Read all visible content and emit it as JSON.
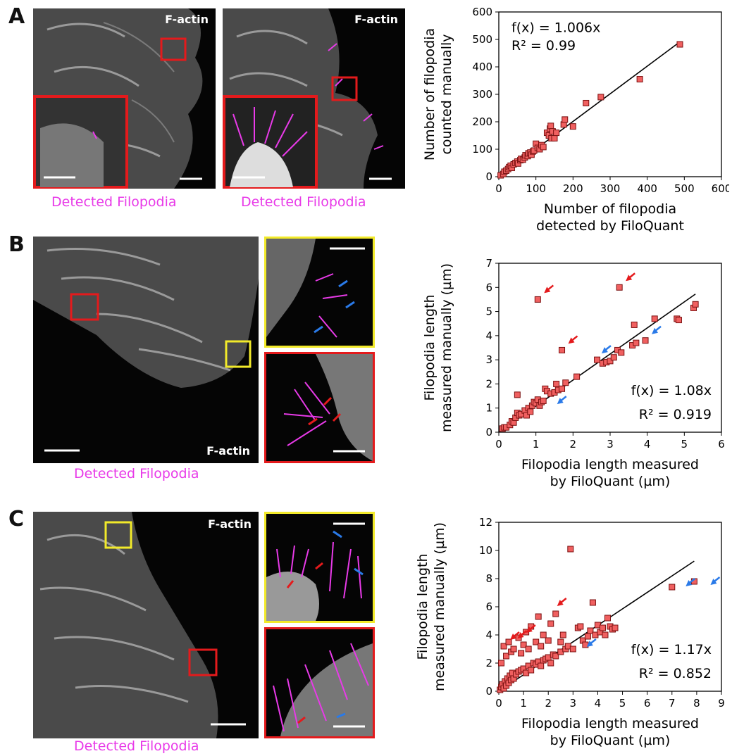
{
  "panels": {
    "A": {
      "letter": "A",
      "image_label": "F-actin",
      "caption": "Detected Filopodia"
    },
    "B": {
      "letter": "B",
      "image_label": "F-actin",
      "caption": "Detected Filopodia"
    },
    "C": {
      "letter": "C",
      "image_label": "F-actin",
      "caption": "Detected Filopodia"
    }
  },
  "colors": {
    "magenta": "#e83ae8",
    "red_box": "#e41a1c",
    "yellow_box": "#f2ea2a",
    "blue_arrow": "#2a7ae8",
    "red_arrow": "#e41a1c",
    "marker_fill": "#f06060"
  },
  "chart_data": [
    {
      "type": "scatter",
      "xlabel": "Number of filopodia\ndetected by FiloQuant",
      "ylabel": "Number of filopodia\ncounted manually",
      "xlim": [
        0,
        600
      ],
      "ylim": [
        0,
        600
      ],
      "xticks": [
        0,
        100,
        200,
        300,
        400,
        500,
        600
      ],
      "yticks": [
        0,
        100,
        200,
        300,
        400,
        500,
        600
      ],
      "fit_label": "f(x) = 1.006x",
      "r2_label": "R² = 0.99",
      "fit_slope": 1.006,
      "fit_range": [
        0,
        488
      ],
      "points": [
        [
          5,
          5
        ],
        [
          12,
          10
        ],
        [
          15,
          18
        ],
        [
          20,
          22
        ],
        [
          25,
          28
        ],
        [
          28,
          35
        ],
        [
          32,
          40
        ],
        [
          35,
          32
        ],
        [
          40,
          45
        ],
        [
          45,
          50
        ],
        [
          50,
          55
        ],
        [
          52,
          48
        ],
        [
          58,
          60
        ],
        [
          60,
          65
        ],
        [
          65,
          62
        ],
        [
          70,
          70
        ],
        [
          72,
          78
        ],
        [
          78,
          75
        ],
        [
          80,
          85
        ],
        [
          85,
          88
        ],
        [
          88,
          80
        ],
        [
          92,
          92
        ],
        [
          95,
          95
        ],
        [
          100,
          120
        ],
        [
          105,
          105
        ],
        [
          110,
          100
        ],
        [
          115,
          115
        ],
        [
          120,
          108
        ],
        [
          130,
          160
        ],
        [
          135,
          150
        ],
        [
          138,
          175
        ],
        [
          140,
          185
        ],
        [
          142,
          140
        ],
        [
          145,
          165
        ],
        [
          150,
          140
        ],
        [
          155,
          160
        ],
        [
          175,
          190
        ],
        [
          178,
          208
        ],
        [
          200,
          183
        ],
        [
          235,
          268
        ],
        [
          275,
          290
        ],
        [
          380,
          355
        ],
        [
          488,
          482
        ]
      ]
    },
    {
      "type": "scatter",
      "xlabel": "Filopodia length measured\nby FiloQuant (µm)",
      "ylabel": "Filopodia length\nmeasured manually (µm)",
      "xlim": [
        0,
        6
      ],
      "ylim": [
        0,
        7
      ],
      "xticks": [
        0,
        1,
        2,
        3,
        4,
        5,
        6
      ],
      "yticks": [
        0,
        1,
        2,
        3,
        4,
        5,
        6,
        7
      ],
      "fit_label": "f(x) = 1.08x",
      "r2_label": "R² = 0.919",
      "fit_slope": 1.08,
      "fit_range": [
        0,
        5.3
      ],
      "points": [
        [
          0.1,
          0.15
        ],
        [
          0.15,
          0.2
        ],
        [
          0.2,
          0.2
        ],
        [
          0.3,
          0.3
        ],
        [
          0.35,
          0.45
        ],
        [
          0.4,
          0.4
        ],
        [
          0.45,
          0.6
        ],
        [
          0.5,
          0.8
        ],
        [
          0.55,
          0.7
        ],
        [
          0.5,
          1.55
        ],
        [
          0.6,
          0.75
        ],
        [
          0.7,
          0.9
        ],
        [
          0.75,
          0.7
        ],
        [
          0.8,
          1.0
        ],
        [
          0.85,
          0.85
        ],
        [
          0.9,
          1.1
        ],
        [
          0.95,
          1.25
        ],
        [
          1.0,
          1.2
        ],
        [
          1.05,
          1.35
        ],
        [
          1.1,
          1.1
        ],
        [
          1.15,
          1.25
        ],
        [
          1.2,
          1.3
        ],
        [
          1.25,
          1.8
        ],
        [
          1.3,
          1.7
        ],
        [
          1.4,
          1.6
        ],
        [
          1.5,
          1.65
        ],
        [
          1.55,
          2.0
        ],
        [
          1.6,
          1.75
        ],
        [
          1.7,
          1.8
        ],
        [
          1.8,
          2.05
        ],
        [
          2.1,
          2.3
        ],
        [
          1.05,
          5.5
        ],
        [
          1.7,
          3.4
        ],
        [
          2.65,
          3.0
        ],
        [
          2.8,
          2.85
        ],
        [
          2.9,
          2.9
        ],
        [
          3.0,
          2.95
        ],
        [
          3.1,
          3.1
        ],
        [
          3.2,
          3.4
        ],
        [
          3.3,
          3.3
        ],
        [
          3.25,
          6.0
        ],
        [
          3.6,
          3.6
        ],
        [
          3.65,
          4.45
        ],
        [
          3.7,
          3.7
        ],
        [
          3.95,
          3.8
        ],
        [
          4.2,
          4.7
        ],
        [
          4.8,
          4.7
        ],
        [
          4.85,
          4.65
        ],
        [
          5.25,
          5.15
        ],
        [
          5.3,
          5.3
        ]
      ],
      "red_arrows": [
        [
          1.05,
          5.5
        ],
        [
          3.25,
          6.0
        ],
        [
          1.7,
          3.4
        ]
      ],
      "blue_arrows": [
        [
          1.4,
          0.9
        ],
        [
          2.6,
          3.0
        ],
        [
          3.95,
          3.8
        ]
      ]
    },
    {
      "type": "scatter",
      "xlabel": "Filopodia length measured\nby FiloQuant (µm)",
      "ylabel": "Filopodia length\nmeasured manually (µm)",
      "xlim": [
        0,
        9
      ],
      "ylim": [
        0,
        12
      ],
      "xticks": [
        0,
        1,
        2,
        3,
        4,
        5,
        6,
        7,
        8,
        9
      ],
      "yticks": [
        0,
        2,
        4,
        6,
        8,
        10,
        12
      ],
      "fit_label": "f(x) = 1.17x",
      "r2_label": "R² = 0.852",
      "fit_slope": 1.17,
      "fit_range": [
        0,
        7.9
      ],
      "points": [
        [
          0.05,
          0.1
        ],
        [
          0.1,
          0.3
        ],
        [
          0.15,
          0.5
        ],
        [
          0.2,
          0.2
        ],
        [
          0.25,
          0.7
        ],
        [
          0.3,
          0.4
        ],
        [
          0.35,
          0.9
        ],
        [
          0.4,
          0.6
        ],
        [
          0.45,
          1.1
        ],
        [
          0.5,
          0.8
        ],
        [
          0.55,
          1.3
        ],
        [
          0.6,
          0.9
        ],
        [
          0.7,
          1.2
        ],
        [
          0.8,
          1.4
        ],
        [
          0.9,
          1.5
        ],
        [
          1.0,
          1.6
        ],
        [
          1.1,
          1.3
        ],
        [
          1.2,
          1.8
        ],
        [
          1.3,
          1.5
        ],
        [
          1.4,
          2.0
        ],
        [
          1.5,
          1.9
        ],
        [
          1.6,
          2.1
        ],
        [
          1.7,
          1.8
        ],
        [
          1.8,
          2.2
        ],
        [
          1.9,
          2.3
        ],
        [
          2.0,
          2.4
        ],
        [
          2.1,
          2.0
        ],
        [
          2.2,
          2.6
        ],
        [
          2.3,
          2.5
        ],
        [
          2.5,
          2.8
        ],
        [
          2.7,
          3.0
        ],
        [
          0.1,
          2.0
        ],
        [
          0.2,
          3.2
        ],
        [
          0.3,
          2.5
        ],
        [
          0.4,
          3.5
        ],
        [
          0.5,
          2.8
        ],
        [
          0.6,
          3.0
        ],
        [
          0.8,
          3.8
        ],
        [
          0.9,
          2.7
        ],
        [
          1.0,
          3.3
        ],
        [
          1.1,
          4.2
        ],
        [
          1.2,
          3.0
        ],
        [
          1.3,
          4.6
        ],
        [
          1.5,
          3.5
        ],
        [
          1.6,
          5.3
        ],
        [
          1.7,
          3.2
        ],
        [
          1.8,
          4.0
        ],
        [
          2.0,
          3.6
        ],
        [
          2.1,
          4.8
        ],
        [
          2.3,
          5.5
        ],
        [
          2.5,
          3.5
        ],
        [
          2.6,
          4.0
        ],
        [
          2.8,
          3.2
        ],
        [
          2.9,
          10.1
        ],
        [
          3.0,
          3.0
        ],
        [
          3.2,
          4.5
        ],
        [
          3.3,
          4.6
        ],
        [
          3.4,
          3.6
        ],
        [
          3.5,
          3.3
        ],
        [
          3.6,
          3.9
        ],
        [
          3.7,
          4.3
        ],
        [
          3.8,
          6.3
        ],
        [
          3.9,
          4.0
        ],
        [
          4.0,
          4.7
        ],
        [
          4.1,
          4.2
        ],
        [
          4.2,
          4.5
        ],
        [
          4.3,
          4.0
        ],
        [
          4.4,
          5.2
        ],
        [
          4.5,
          4.6
        ],
        [
          4.6,
          4.4
        ],
        [
          4.7,
          4.5
        ],
        [
          7.0,
          7.4
        ],
        [
          7.9,
          7.8
        ]
      ],
      "red_arrows": [
        [
          0.2,
          3.2
        ],
        [
          0.5,
          3.3
        ],
        [
          0.85,
          3.7
        ],
        [
          2.1,
          5.6
        ]
      ],
      "blue_arrows": [
        [
          3.3,
          2.7
        ],
        [
          7.3,
          7.0
        ],
        [
          8.3,
          7.1
        ]
      ]
    }
  ]
}
